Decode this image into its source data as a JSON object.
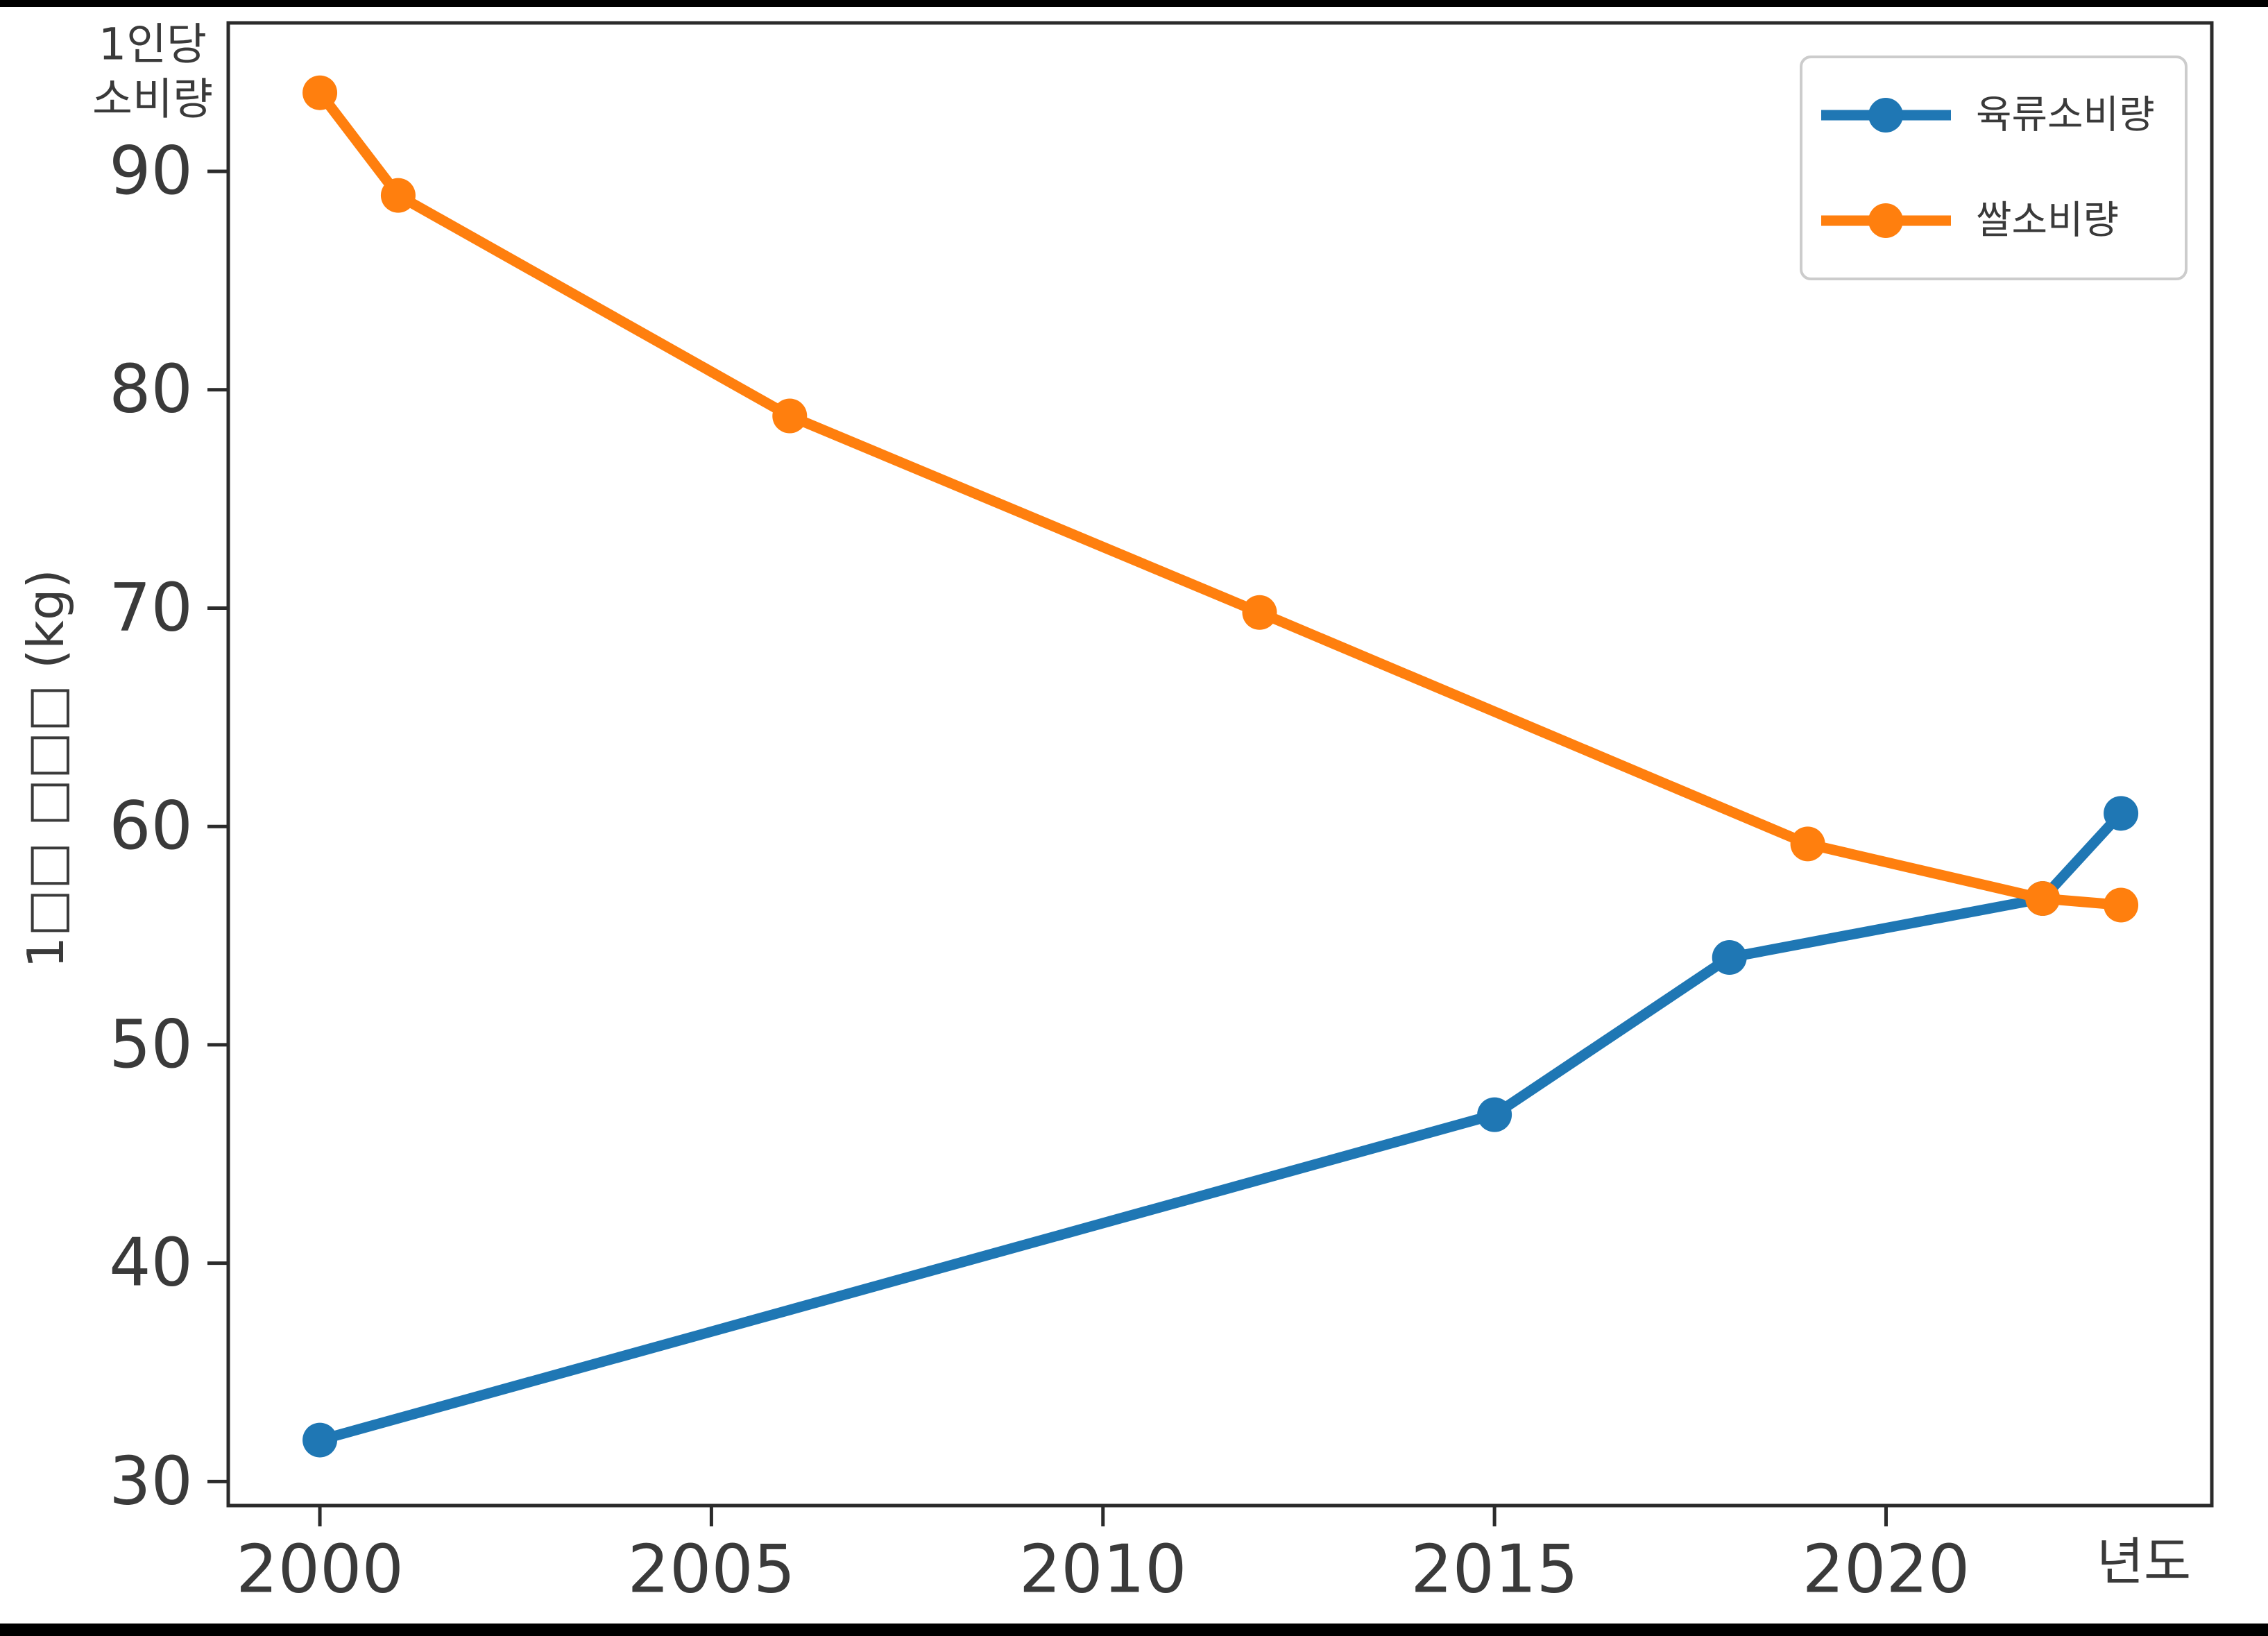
{
  "chart_data": {
    "type": "line",
    "title": "1인당 소비량",
    "title_lines": [
      "1인당",
      "소비량"
    ],
    "xlabel": "년도",
    "ylabel": "1□□ □□□ (kg)",
    "x_ticks": [
      "2000",
      "2005",
      "2010",
      "2015",
      "2020"
    ],
    "y_ticks": [
      "30",
      "40",
      "50",
      "60",
      "70",
      "80",
      "90"
    ],
    "xlim": [
      1998.83,
      2024.16
    ],
    "ylim": [
      28.9,
      96.8
    ],
    "grid": false,
    "legend": {
      "position": "upper right",
      "entries": [
        "육류소비량",
        "쌀소비량"
      ]
    },
    "colors": {
      "meat": "#1f77b4",
      "rice": "#ff7f0e",
      "text": "#3a3a3a",
      "spine": "#2b2b2b",
      "legend_border": "#cccccc",
      "background": "#ffffff",
      "frame": "#000000"
    },
    "series": [
      {
        "name": "육류소비량",
        "key": "meat",
        "color": "#1f77b4",
        "x": [
          2000,
          2015,
          2018,
          2022,
          2023
        ],
        "y": [
          31.9,
          46.8,
          54.0,
          56.7,
          60.6
        ]
      },
      {
        "name": "쌀소비량",
        "key": "rice",
        "color": "#ff7f0e",
        "x": [
          2000,
          2001,
          2006,
          2012,
          2019,
          2022,
          2023
        ],
        "y": [
          93.6,
          88.9,
          78.8,
          69.8,
          59.2,
          56.7,
          56.4
        ]
      }
    ]
  }
}
